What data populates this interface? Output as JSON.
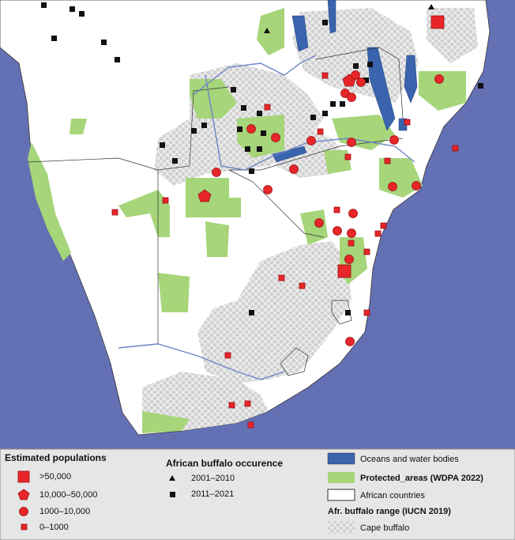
{
  "legend": {
    "populations": {
      "title": "Estimated populations",
      "items": [
        ">50,000",
        "10,000–50,000",
        "1000–10,000",
        "0–1000"
      ]
    },
    "occurrence": {
      "title": "African buffalo occurence",
      "items": [
        "2001–2010",
        "2011–2021"
      ]
    },
    "layers": {
      "items": [
        "Oceans and water bodies",
        "Protected_areas (WDPA 2022)",
        "African countries"
      ],
      "range_title": "Afr. buffalo range (IUCN 2019)",
      "range_items": [
        "Cape buffalo"
      ]
    }
  }
}
